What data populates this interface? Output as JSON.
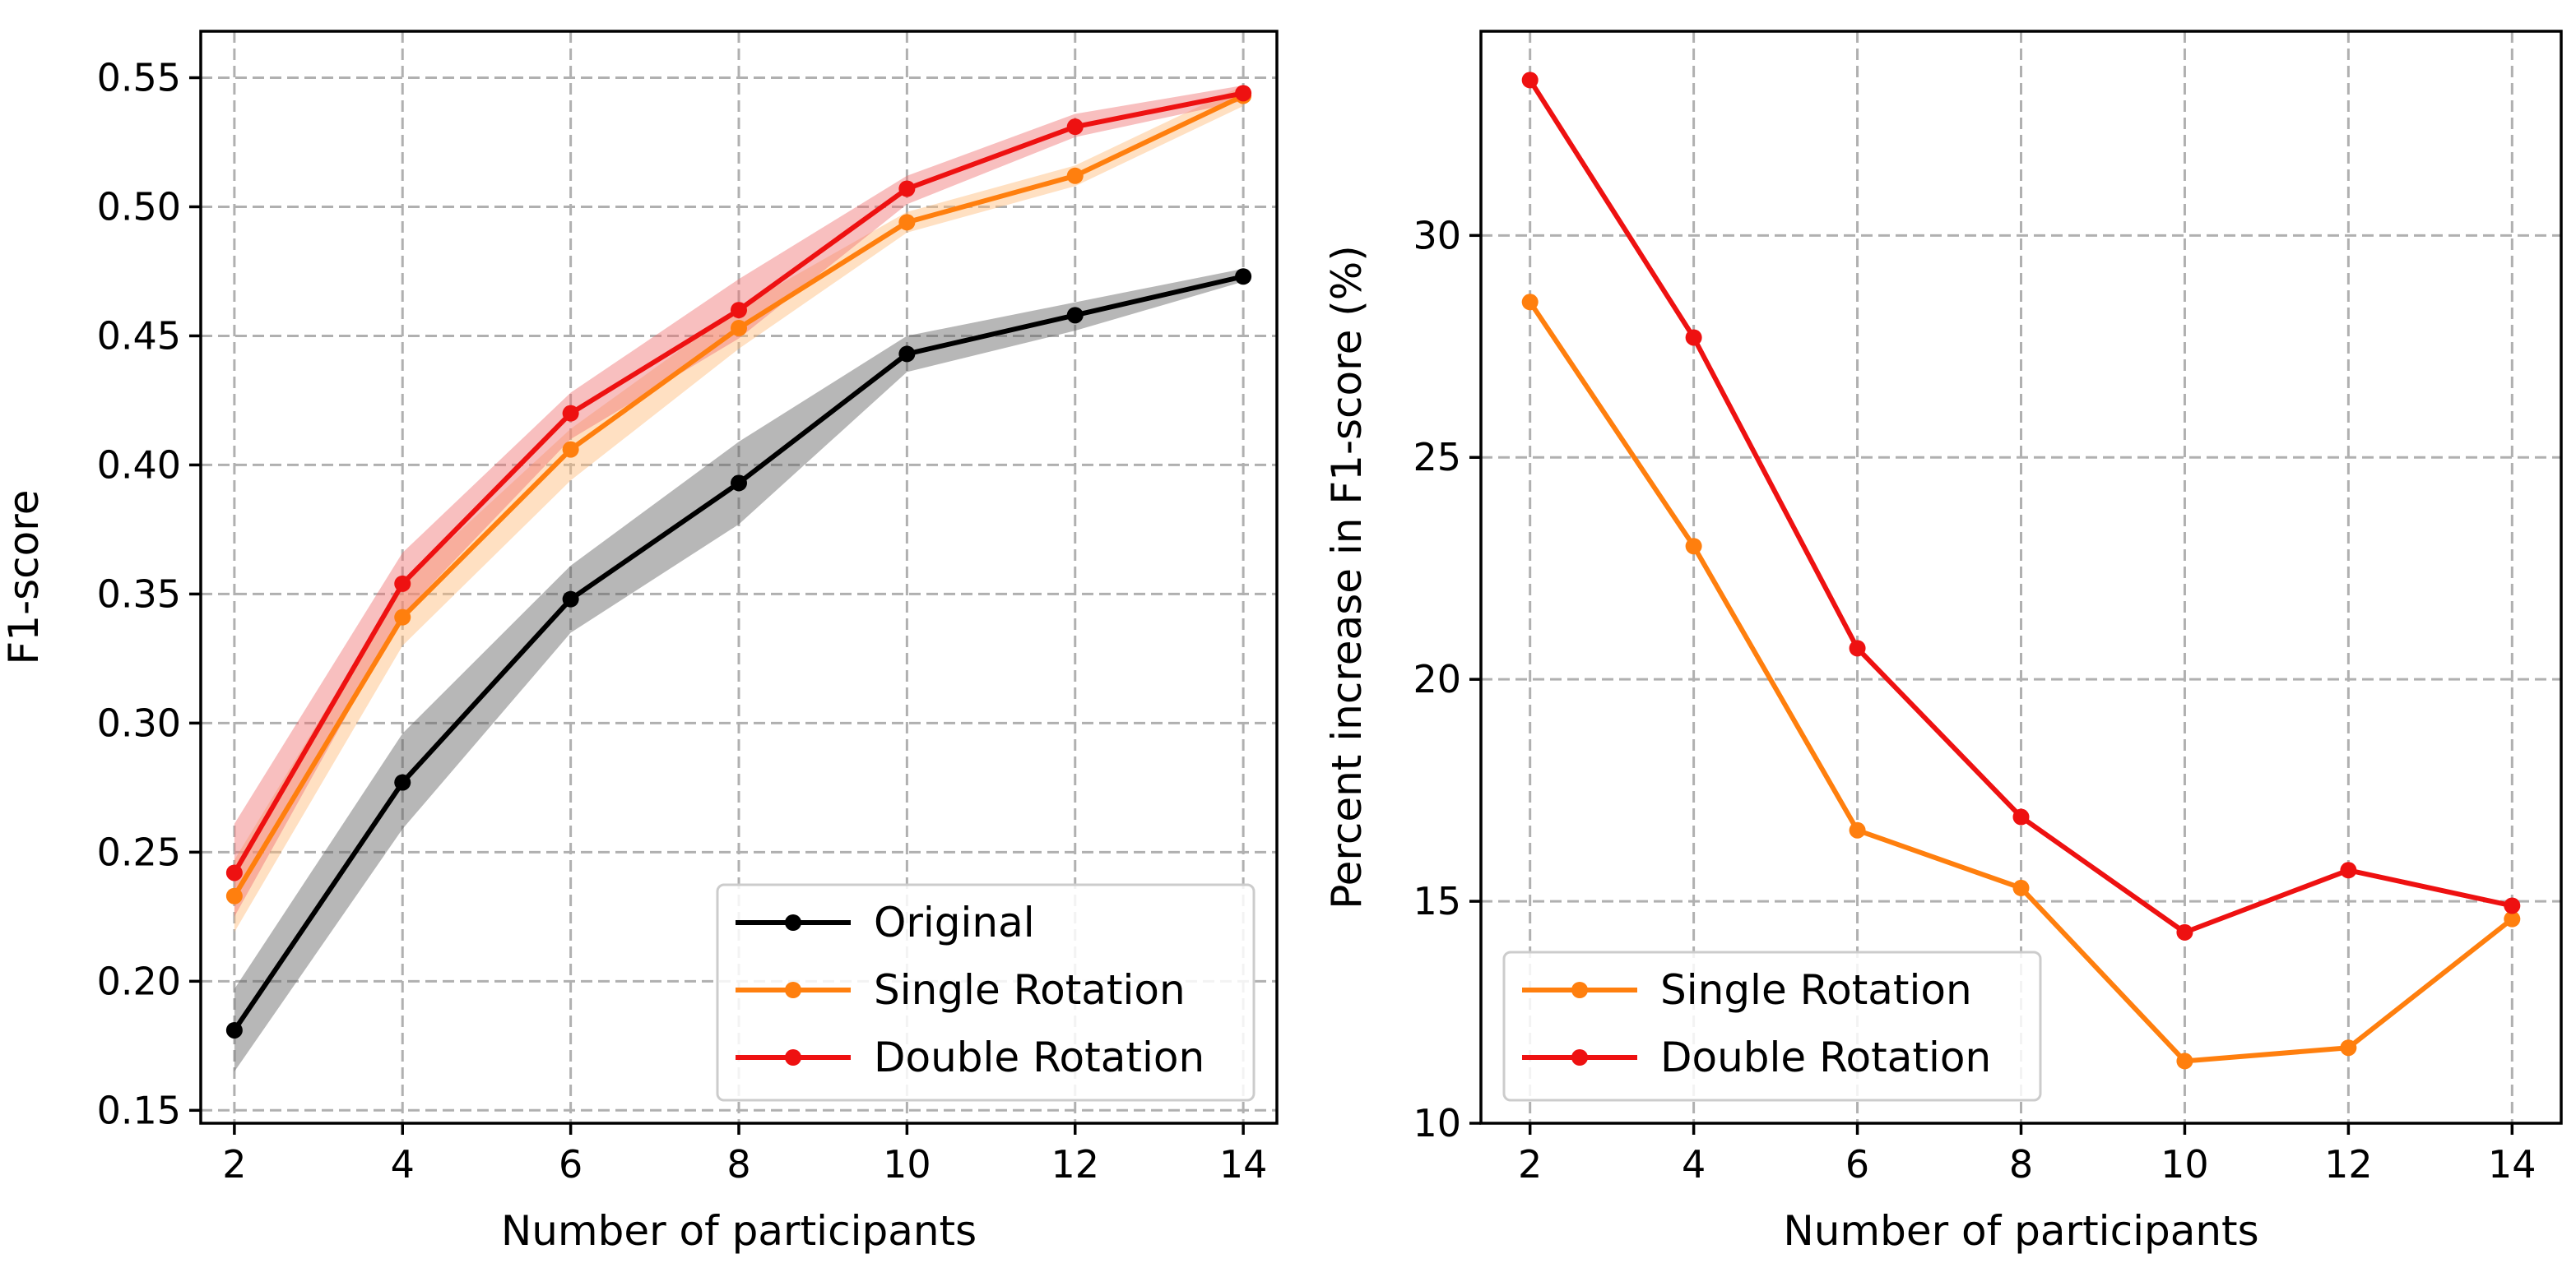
{
  "chart_data": [
    {
      "type": "line",
      "xlabel": "Number of participants",
      "ylabel": "F1-score",
      "xlim": [
        1.6,
        14.4
      ],
      "ylim": [
        0.145,
        0.568
      ],
      "xticks": [
        2,
        4,
        6,
        8,
        10,
        12,
        14
      ],
      "yticks": [
        0.15,
        0.2,
        0.25,
        0.3,
        0.35,
        0.4,
        0.45,
        0.5,
        0.55
      ],
      "ytick_labels": [
        "0.15",
        "0.20",
        "0.25",
        "0.30",
        "0.35",
        "0.40",
        "0.45",
        "0.50",
        "0.55"
      ],
      "grid": true,
      "legend_position": "lower-right",
      "x": [
        2,
        4,
        6,
        8,
        10,
        12,
        14
      ],
      "series": [
        {
          "name": "Original",
          "color": "#000000",
          "band_color": "#606060",
          "values": [
            0.181,
            0.277,
            0.348,
            0.393,
            0.443,
            0.458,
            0.473
          ],
          "lower": [
            0.165,
            0.259,
            0.335,
            0.377,
            0.436,
            0.452,
            0.471
          ],
          "upper": [
            0.197,
            0.296,
            0.361,
            0.409,
            0.45,
            0.463,
            0.476
          ]
        },
        {
          "name": "Single Rotation",
          "color": "#ff7f0e",
          "band_color": "#ffbb78",
          "values": [
            0.233,
            0.341,
            0.406,
            0.453,
            0.494,
            0.512,
            0.543
          ],
          "lower": [
            0.219,
            0.33,
            0.394,
            0.445,
            0.49,
            0.508,
            0.539
          ],
          "upper": [
            0.247,
            0.354,
            0.414,
            0.461,
            0.498,
            0.516,
            0.547
          ]
        },
        {
          "name": "Double Rotation",
          "color": "#ee1111",
          "band_color": "#f07070",
          "values": [
            0.242,
            0.354,
            0.42,
            0.46,
            0.507,
            0.531,
            0.544
          ],
          "lower": [
            0.225,
            0.342,
            0.41,
            0.449,
            0.501,
            0.527,
            0.541
          ],
          "upper": [
            0.261,
            0.366,
            0.428,
            0.472,
            0.512,
            0.536,
            0.547
          ]
        }
      ]
    },
    {
      "type": "line",
      "xlabel": "Number of participants",
      "ylabel": "Percent increase in F1-score (%)",
      "xlim": [
        1.4,
        14.6
      ],
      "ylim": [
        10,
        34.6
      ],
      "xticks": [
        2,
        4,
        6,
        8,
        10,
        12,
        14
      ],
      "yticks": [
        10,
        15,
        20,
        25,
        30
      ],
      "ytick_labels": [
        "10",
        "15",
        "20",
        "25",
        "30"
      ],
      "grid": true,
      "legend_position": "lower-left",
      "x": [
        2,
        4,
        6,
        8,
        10,
        12,
        14
      ],
      "series": [
        {
          "name": "Single Rotation",
          "color": "#ff7f0e",
          "values": [
            28.5,
            23.0,
            16.6,
            15.3,
            11.4,
            11.7,
            14.6
          ]
        },
        {
          "name": "Double Rotation",
          "color": "#ee1111",
          "values": [
            33.5,
            27.7,
            20.7,
            16.9,
            14.3,
            15.7,
            14.9
          ]
        }
      ]
    }
  ]
}
